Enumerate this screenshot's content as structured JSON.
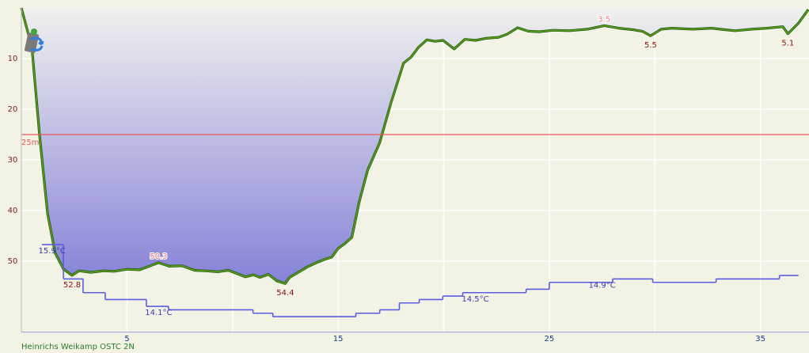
{
  "chart_data": {
    "type": "line",
    "xlim": [
      0,
      37.3
    ],
    "ylim": [
      64,
      0
    ],
    "y2lim": [
      13.35,
      22.8
    ],
    "xticks": [
      5,
      15,
      25,
      35
    ],
    "x_grid": [
      10,
      20,
      30
    ],
    "yticks": [
      10,
      20,
      30,
      40,
      50
    ],
    "grid": true,
    "reference_line": {
      "value": 25,
      "label": "25m",
      "color": "#e85a5a"
    },
    "series": [
      {
        "color": "#5f9e1c",
        "outline": "#1f5a10",
        "x": [
          0,
          0.5,
          0.86,
          1.24,
          1.6,
          2.0,
          2.4,
          2.73,
          3.3,
          3.86,
          4.4,
          5.0,
          5.6,
          6.5,
          7.0,
          7.6,
          8.2,
          8.7,
          9.3,
          9.8,
          10.3,
          10.6,
          11.0,
          11.3,
          11.7,
          12.1,
          12.5,
          12.7,
          13.2,
          13.6,
          13.97,
          14.4,
          14.7,
          15.0,
          15.3,
          15.65,
          16.0,
          16.4,
          16.97,
          17.5,
          18.1,
          18.46,
          18.8,
          19.2,
          19.6,
          19.97,
          20.5,
          21.0,
          21.5,
          22.0,
          22.6,
          23.0,
          23.5,
          24.0,
          24.5,
          25.2,
          25.95,
          26.8,
          27.6,
          28.3,
          28.96,
          29.4,
          29.8,
          30.3,
          30.8,
          31.8,
          32.7,
          33.3,
          33.8,
          34.6,
          35.3,
          36.06,
          36.3,
          36.8,
          37.27
        ],
        "values": [
          0,
          7.8,
          25,
          40.6,
          48.4,
          51.6,
          52.8,
          51.9,
          52.2,
          51.9,
          52.0,
          51.6,
          51.7,
          50.3,
          51.0,
          50.9,
          51.8,
          51.9,
          52.1,
          51.8,
          52.6,
          53.1,
          52.7,
          53.2,
          52.6,
          53.9,
          54.4,
          53.2,
          52.0,
          51.0,
          50.3,
          49.6,
          49.2,
          47.5,
          46.6,
          45.3,
          38.3,
          32.0,
          26.6,
          18.8,
          10.9,
          9.7,
          7.8,
          6.3,
          6.6,
          6.4,
          8.1,
          6.2,
          6.4,
          6.0,
          5.8,
          5.2,
          3.9,
          4.6,
          4.7,
          4.4,
          4.5,
          4.2,
          3.5,
          4.0,
          4.3,
          4.6,
          5.5,
          4.2,
          4.0,
          4.2,
          4.0,
          4.3,
          4.5,
          4.2,
          4.0,
          3.7,
          5.1,
          3.0,
          0.3
        ]
      },
      {
        "color": "#5a5ee0",
        "axis": "y2",
        "step": "post",
        "x": [
          0.97,
          1.99,
          2.92,
          3.97,
          5.92,
          6.97,
          10.97,
          11.91,
          15.84,
          16.97,
          17.9,
          18.84,
          19.96,
          20.9,
          23.9,
          25.0,
          28.0,
          29.9,
          32.9,
          35.9,
          36.8
        ],
        "values": [
          15.9,
          14.9,
          14.5,
          14.3,
          14.1,
          14.0,
          13.9,
          13.8,
          13.9,
          14.0,
          14.2,
          14.3,
          14.4,
          14.5,
          14.6,
          14.8,
          14.9,
          14.8,
          14.9,
          15.0,
          15.0
        ]
      }
    ],
    "depth_labels": [
      {
        "x": 2.4,
        "value": 52.8,
        "color": "#8b1010"
      },
      {
        "x": 6.5,
        "value": 50.3,
        "color": "#f07a7a"
      },
      {
        "x": 12.5,
        "value": 54.4,
        "color": "#8b1010"
      },
      {
        "x": 27.6,
        "value": 3.5,
        "color": "#f07a7a"
      },
      {
        "x": 29.8,
        "value": 5.5,
        "color": "#8b1010"
      },
      {
        "x": 36.3,
        "value": 5.1,
        "color": "#8b1010"
      }
    ],
    "temperature_labels": [
      {
        "x": 1.45,
        "value": 15.9,
        "label": "15.9°C"
      },
      {
        "x": 6.5,
        "value": 14.1,
        "label": "14.1°C"
      },
      {
        "x": 21.5,
        "value": 14.5,
        "label": "14.5°C"
      },
      {
        "x": 27.5,
        "value": 14.9,
        "label": "14.9°C"
      }
    ],
    "footer": "Heinrichs Weikamp OSTC 2N"
  }
}
